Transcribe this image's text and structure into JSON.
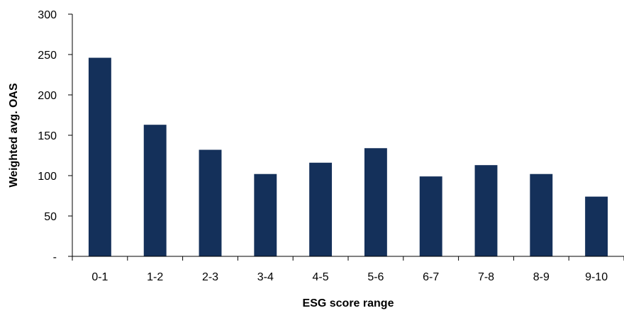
{
  "chart_data": {
    "type": "bar",
    "title": "",
    "xlabel": "ESG score range",
    "ylabel": "Weighted avg. OAS",
    "categories": [
      "0-1",
      "1-2",
      "2-3",
      "3-4",
      "4-5",
      "5-6",
      "6-7",
      "7-8",
      "8-9",
      "9-10"
    ],
    "values": [
      246,
      163,
      132,
      102,
      116,
      134,
      99,
      113,
      102,
      74
    ],
    "ylim": [
      0,
      300
    ],
    "yticks": [
      0,
      50,
      100,
      150,
      200,
      250,
      300
    ],
    "ytick_labels": [
      "-",
      "50",
      "100",
      "150",
      "200",
      "250",
      "300"
    ],
    "bar_color": "#14305a",
    "grid": false,
    "legend": "none"
  }
}
